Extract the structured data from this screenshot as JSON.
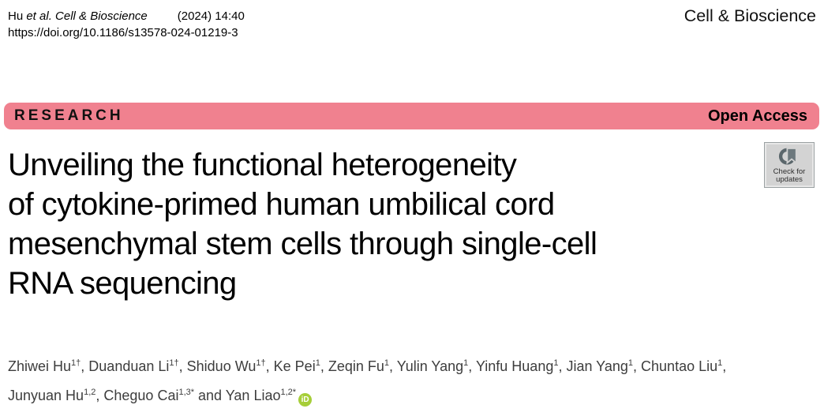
{
  "header": {
    "citation_name": "Hu ",
    "citation_italic": "et al. Cell & Bioscience",
    "citation_info": "(2024) 14:40",
    "doi": "https://doi.org/10.1186/s13578-024-01219-3",
    "journal": "Cell & Bioscience"
  },
  "banner": {
    "left_label": "RESEARCH",
    "right_label": "Open Access",
    "color": "#f0818f"
  },
  "update_badge": {
    "line1": "Check for",
    "line2": "updates"
  },
  "title": {
    "lines": [
      "Unveiling the functional heterogeneity",
      "of cytokine-primed human umbilical cord",
      "mesenchymal stem cells through single-cell",
      "RNA sequencing"
    ]
  },
  "authors": {
    "list": [
      {
        "name": "Zhiwei Hu",
        "sup": "1†",
        "post": ", "
      },
      {
        "name": "Duanduan Li",
        "sup": "1†",
        "post": ", "
      },
      {
        "name": "Shiduo Wu",
        "sup": "1†",
        "post": ", "
      },
      {
        "name": "Ke Pei",
        "sup": "1",
        "post": ", "
      },
      {
        "name": "Zeqin Fu",
        "sup": "1",
        "post": ", "
      },
      {
        "name": "Yulin Yang",
        "sup": "1",
        "post": ", "
      },
      {
        "name": "Yinfu Huang",
        "sup": "1",
        "post": ", "
      },
      {
        "name": "Jian Yang",
        "sup": "1",
        "post": ", "
      },
      {
        "name": "Chuntao Liu",
        "sup": "1",
        "post": ", ",
        "break_after": true
      },
      {
        "name": "Junyuan Hu",
        "sup": "1,2",
        "post": ", "
      },
      {
        "name": "Cheguo Cai",
        "sup": "1,3*",
        "post": " and "
      },
      {
        "name": "Yan Liao",
        "sup": "1,2*",
        "post": ""
      }
    ],
    "orcid_label": "iD"
  }
}
